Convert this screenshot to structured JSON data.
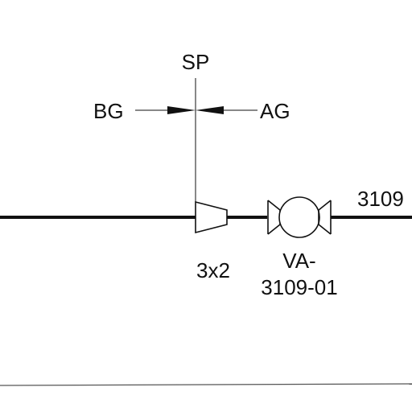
{
  "labels": {
    "sp": "SP",
    "bg": "BG",
    "ag": "AG",
    "reducer_size": "3x2",
    "valve_tag_line1": "VA-",
    "valve_tag_line2": "3109-01",
    "line_number_partial": "3109"
  },
  "colors": {
    "line": "#111111",
    "background": "#ffffff"
  }
}
